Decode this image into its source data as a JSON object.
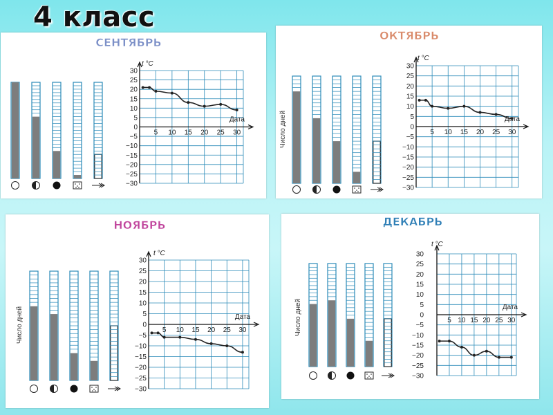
{
  "title": "4 класс",
  "colors": {
    "grid": "#2a8ab8",
    "fill": "#7d7d7d",
    "line": "#222222",
    "month_sep": "#7b8fc7",
    "month_oct": "#d98a6a",
    "month_nov": "#c0449c",
    "month_dec": "#2f7fb6"
  },
  "icons": [
    "clear-sky-icon",
    "partly-cloudy-icon",
    "overcast-icon",
    "precipitation-icon",
    "wind-icon"
  ],
  "chart_data": [
    {
      "type": "line",
      "month": "СЕНТЯБРЬ",
      "xlabel": "Дата",
      "ylabel": "t °C",
      "bars_label": "",
      "xticks": [
        5,
        10,
        15,
        20,
        25,
        30
      ],
      "yticks": [
        30,
        25,
        20,
        15,
        10,
        5,
        0,
        -5,
        -10,
        -15,
        -20,
        -25,
        -30
      ],
      "xlim": [
        0,
        32
      ],
      "ylim": [
        -30,
        30
      ],
      "x": [
        1,
        3,
        5,
        10,
        15,
        20,
        25,
        30
      ],
      "y": [
        21,
        21,
        19,
        18,
        13,
        11,
        12,
        9
      ],
      "bars": [
        28,
        18,
        8,
        1,
        7
      ],
      "bars_max": 28
    },
    {
      "type": "line",
      "month": "ОКТЯБРЬ",
      "xlabel": "Дата",
      "ylabel": "t °C",
      "bars_label": "Число  дней",
      "xticks": [
        5,
        10,
        15,
        20,
        25,
        30
      ],
      "yticks": [
        30,
        25,
        20,
        15,
        10,
        5,
        0,
        -5,
        -10,
        -15,
        -20,
        -25,
        -30
      ],
      "xlim": [
        0,
        32
      ],
      "ylim": [
        -30,
        30
      ],
      "x": [
        1,
        3,
        5,
        10,
        15,
        20,
        25,
        30
      ],
      "y": [
        13,
        13,
        10,
        9,
        10,
        7,
        6,
        4
      ],
      "bars": [
        24,
        17,
        11,
        3,
        11
      ],
      "bars_max": 28
    },
    {
      "type": "line",
      "month": "НОЯБРЬ",
      "xlabel": "Дата",
      "ylabel": "t °C",
      "bars_label": "Число  дней",
      "xticks": [
        5,
        10,
        15,
        20,
        25,
        30
      ],
      "yticks": [
        30,
        25,
        20,
        15,
        10,
        5,
        0,
        -5,
        -10,
        -15,
        -20,
        -25,
        -30
      ],
      "xlim": [
        0,
        32
      ],
      "ylim": [
        -30,
        30
      ],
      "x": [
        1,
        3,
        5,
        10,
        15,
        20,
        25,
        30
      ],
      "y": [
        -4,
        -4,
        -6,
        -6,
        -7,
        -9,
        -10,
        -13
      ],
      "bars": [
        19,
        17,
        7,
        5,
        14
      ],
      "bars_max": 28
    },
    {
      "type": "line",
      "month": "ДЕКАБРЬ",
      "xlabel": "Дата",
      "ylabel": "t °C",
      "bars_label": "Число  дней",
      "xticks": [
        5,
        10,
        15,
        20,
        25,
        30
      ],
      "yticks": [
        30,
        25,
        20,
        15,
        10,
        5,
        0,
        -5,
        -10,
        -15,
        -20,
        -25,
        -30
      ],
      "xlim": [
        0,
        32
      ],
      "ylim": [
        -30,
        30
      ],
      "x": [
        1,
        5,
        10,
        15,
        20,
        25,
        30
      ],
      "y": [
        -13,
        -13,
        -16,
        -20,
        -18,
        -21,
        -21
      ],
      "bars": [
        17,
        18,
        13,
        7,
        13
      ],
      "bars_max": 28
    }
  ]
}
